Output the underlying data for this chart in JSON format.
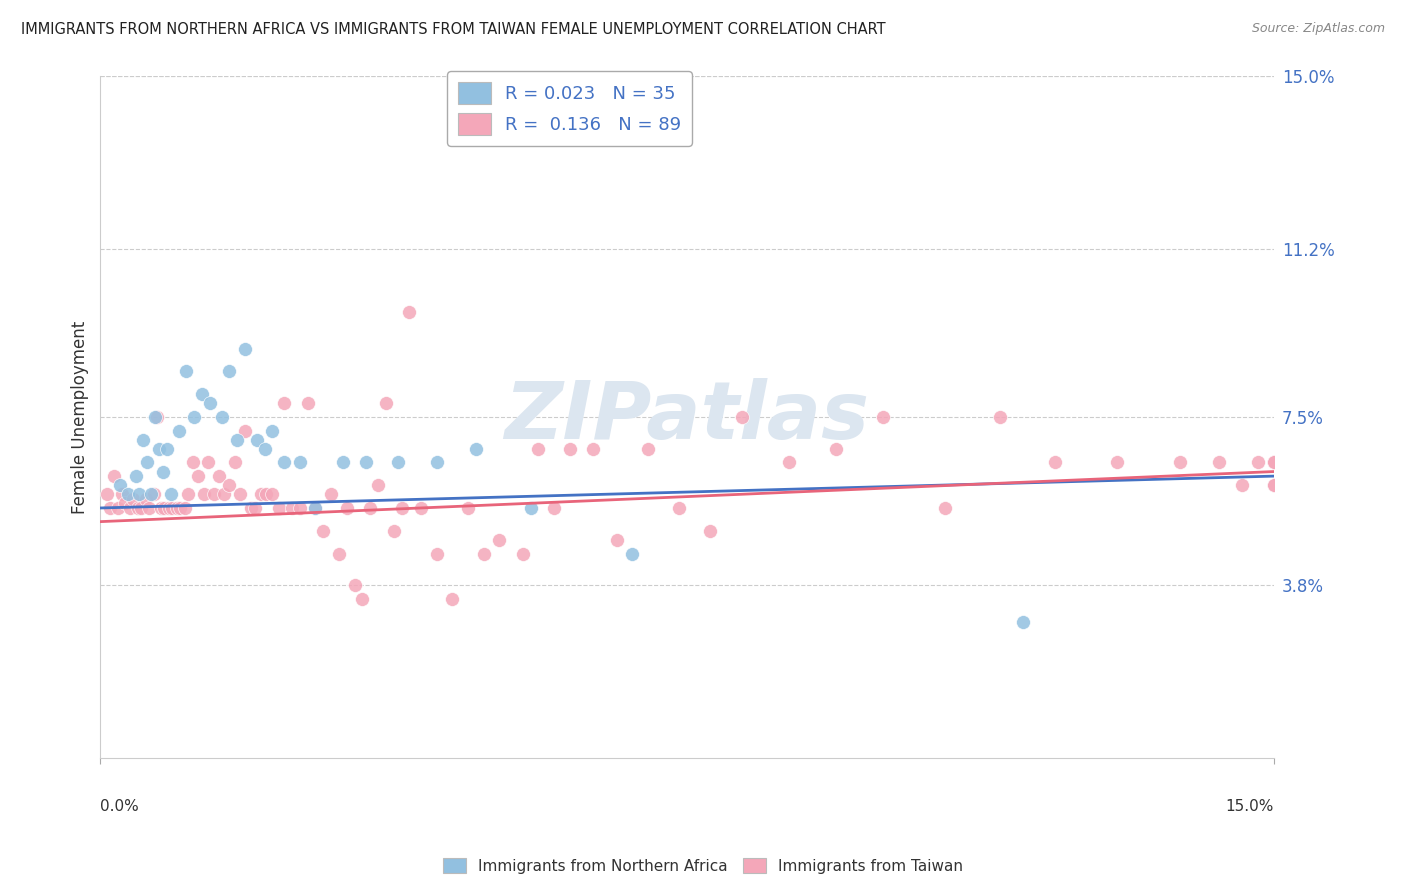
{
  "title": "IMMIGRANTS FROM NORTHERN AFRICA VS IMMIGRANTS FROM TAIWAN FEMALE UNEMPLOYMENT CORRELATION CHART",
  "source": "Source: ZipAtlas.com",
  "ylabel": "Female Unemployment",
  "ytick_values": [
    3.8,
    7.5,
    11.2,
    15.0
  ],
  "ytick_labels": [
    "3.8%",
    "7.5%",
    "11.2%",
    "15.0%"
  ],
  "xlim": [
    0.0,
    15.0
  ],
  "ylim": [
    0.0,
    15.0
  ],
  "legend_label1": "Immigrants from Northern Africa",
  "legend_label2": "Immigrants from Taiwan",
  "R1": "0.023",
  "N1": "35",
  "R2": "0.136",
  "N2": "89",
  "color_blue": "#92c0e0",
  "color_pink": "#f4a7b9",
  "trend_color_blue": "#4472c4",
  "trend_color_pink": "#e8647a",
  "background_color": "#ffffff",
  "watermark": "ZIPatlas",
  "watermark_color": "#dce6f0",
  "blue_x": [
    0.25,
    0.35,
    0.45,
    0.5,
    0.55,
    0.6,
    0.65,
    0.7,
    0.75,
    0.8,
    0.85,
    0.9,
    1.0,
    1.1,
    1.2,
    1.3,
    1.4,
    1.55,
    1.65,
    1.75,
    1.85,
    2.0,
    2.1,
    2.2,
    2.35,
    2.55,
    2.75,
    3.1,
    3.4,
    3.8,
    4.3,
    4.8,
    5.5,
    6.8,
    11.8
  ],
  "blue_y": [
    6.0,
    5.8,
    6.2,
    5.8,
    7.0,
    6.5,
    5.8,
    7.5,
    6.8,
    6.3,
    6.8,
    5.8,
    7.2,
    8.5,
    7.5,
    8.0,
    7.8,
    7.5,
    8.5,
    7.0,
    9.0,
    7.0,
    6.8,
    7.2,
    6.5,
    6.5,
    5.5,
    6.5,
    6.5,
    6.5,
    6.5,
    6.8,
    5.5,
    4.5,
    3.0
  ],
  "pink_x": [
    0.08,
    0.12,
    0.18,
    0.22,
    0.28,
    0.32,
    0.38,
    0.42,
    0.48,
    0.52,
    0.58,
    0.62,
    0.68,
    0.72,
    0.78,
    0.82,
    0.88,
    0.92,
    0.98,
    1.02,
    1.08,
    1.12,
    1.18,
    1.25,
    1.32,
    1.38,
    1.45,
    1.52,
    1.58,
    1.65,
    1.72,
    1.78,
    1.85,
    1.92,
    1.98,
    2.05,
    2.12,
    2.2,
    2.28,
    2.35,
    2.45,
    2.55,
    2.65,
    2.75,
    2.85,
    2.95,
    3.05,
    3.15,
    3.25,
    3.35,
    3.45,
    3.55,
    3.65,
    3.75,
    3.85,
    3.95,
    4.1,
    4.3,
    4.5,
    4.7,
    4.9,
    5.1,
    5.4,
    5.6,
    5.8,
    6.0,
    6.3,
    6.6,
    7.0,
    7.4,
    7.8,
    8.2,
    8.8,
    9.4,
    10.0,
    10.8,
    11.5,
    12.2,
    13.0,
    13.8,
    14.3,
    14.6,
    14.8,
    15.0,
    15.0,
    15.0,
    15.0,
    15.0,
    15.0
  ],
  "pink_y": [
    5.8,
    5.5,
    6.2,
    5.5,
    5.8,
    5.6,
    5.5,
    5.7,
    5.5,
    5.5,
    5.7,
    5.5,
    5.8,
    7.5,
    5.5,
    5.5,
    5.5,
    5.5,
    5.5,
    5.5,
    5.5,
    5.8,
    6.5,
    6.2,
    5.8,
    6.5,
    5.8,
    6.2,
    5.8,
    6.0,
    6.5,
    5.8,
    7.2,
    5.5,
    5.5,
    5.8,
    5.8,
    5.8,
    5.5,
    7.8,
    5.5,
    5.5,
    7.8,
    5.5,
    5.0,
    5.8,
    4.5,
    5.5,
    3.8,
    3.5,
    5.5,
    6.0,
    7.8,
    5.0,
    5.5,
    9.8,
    5.5,
    4.5,
    3.5,
    5.5,
    4.5,
    4.8,
    4.5,
    6.8,
    5.5,
    6.8,
    6.8,
    4.8,
    6.8,
    5.5,
    5.0,
    7.5,
    6.5,
    6.8,
    7.5,
    5.5,
    7.5,
    6.5,
    6.5,
    6.5,
    6.5,
    6.0,
    6.5,
    6.5,
    6.0,
    6.5,
    6.5,
    6.0,
    6.5
  ]
}
